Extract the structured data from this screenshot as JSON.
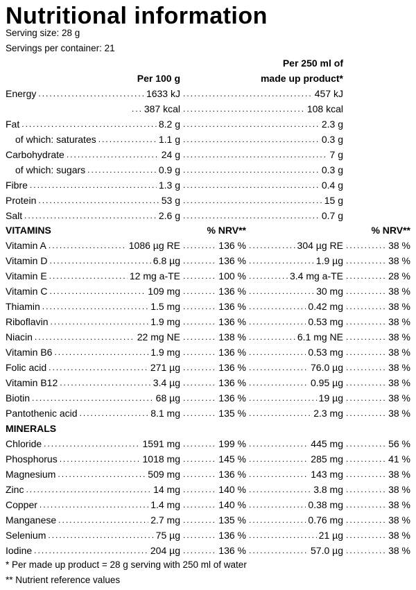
{
  "title": "Nutritional information",
  "serving_size": "Serving size: 28 g",
  "servings_per_container": "Servings per container: 21",
  "headers": {
    "per100": "Per 100 g",
    "per250_line1": "Per 250 ml of",
    "per250_line2": "made up product*",
    "nrv": "% NRV**"
  },
  "nutrition": [
    {
      "name": "Energy",
      "per100": "1633 kJ",
      "per250": "457 kJ"
    },
    {
      "name": "",
      "per100": "387 kcal",
      "per250": "108 kcal"
    },
    {
      "name": "Fat",
      "per100": "8.2 g",
      "per250": "2.3 g"
    },
    {
      "name": "of which: saturates",
      "per100": "1.1 g",
      "per250": "0.3 g",
      "indent": true
    },
    {
      "name": "Carbohydrate",
      "per100": "24 g",
      "per250": "7 g"
    },
    {
      "name": "of which: sugars",
      "per100": "0.9 g",
      "per250": "0.3 g",
      "indent": true
    },
    {
      "name": "Fibre",
      "per100": "1.3 g",
      "per250": "0.4 g"
    },
    {
      "name": "Protein",
      "per100": "53 g",
      "per250": "15 g"
    },
    {
      "name": "Salt",
      "per100": "2.6 g",
      "per250": "0.7 g"
    }
  ],
  "vitamins_heading": "VITAMINS",
  "vitamins": [
    {
      "name": "Vitamin A",
      "per100": "1086 µg RE",
      "nrv100": "136 %",
      "per250": "304 µg RE",
      "nrv250": "38 %"
    },
    {
      "name": "Vitamin D",
      "per100": "6.8 µg",
      "nrv100": "136 %",
      "per250": "1.9 µg",
      "nrv250": "38 %"
    },
    {
      "name": "Vitamin E",
      "per100": "12 mg a-TE",
      "nrv100": "100 %",
      "per250": "3.4 mg a-TE",
      "nrv250": "28 %"
    },
    {
      "name": "Vitamin C",
      "per100": "109 mg",
      "nrv100": "136 %",
      "per250": "30 mg",
      "nrv250": "38 %"
    },
    {
      "name": "Thiamin",
      "per100": "1.5 mg",
      "nrv100": "136 %",
      "per250": "0.42 mg",
      "nrv250": "38 %"
    },
    {
      "name": "Riboflavin",
      "per100": "1.9 mg",
      "nrv100": "136 %",
      "per250": "0.53 mg",
      "nrv250": "38 %"
    },
    {
      "name": "Niacin",
      "per100": "22 mg NE",
      "nrv100": "138 %",
      "per250": "6.1 mg NE",
      "nrv250": "38 %"
    },
    {
      "name": "Vitamin B6",
      "per100": "1.9 mg",
      "nrv100": "136 %",
      "per250": "0.53 mg",
      "nrv250": "38 %"
    },
    {
      "name": "Folic acid",
      "per100": "271 µg",
      "nrv100": "136 %",
      "per250": "76.0 µg",
      "nrv250": "38 %"
    },
    {
      "name": "Vitamin B12",
      "per100": "3.4 µg",
      "nrv100": "136 %",
      "per250": "0.95 µg",
      "nrv250": "38 %"
    },
    {
      "name": "Biotin",
      "per100": "68 µg",
      "nrv100": "136 %",
      "per250": "19 µg",
      "nrv250": "38 %"
    },
    {
      "name": "Pantothenic acid",
      "per100": "8.1 mg",
      "nrv100": "135 %",
      "per250": "2.3 mg",
      "nrv250": "38 %"
    }
  ],
  "minerals_heading": "MINERALS",
  "minerals": [
    {
      "name": "Chloride",
      "per100": "1591 mg",
      "nrv100": "199 %",
      "per250": "445 mg",
      "nrv250": "56 %"
    },
    {
      "name": "Phosphorus",
      "per100": "1018 mg",
      "nrv100": "145 %",
      "per250": "285 mg",
      "nrv250": "41 %"
    },
    {
      "name": "Magnesium",
      "per100": "509 mg",
      "nrv100": "136 %",
      "per250": "143 mg",
      "nrv250": "38 %"
    },
    {
      "name": "Zinc",
      "per100": "14 mg",
      "nrv100": "140 %",
      "per250": "3.8 mg",
      "nrv250": "38 %"
    },
    {
      "name": "Copper",
      "per100": "1.4 mg",
      "nrv100": "140 %",
      "per250": "0.38 mg",
      "nrv250": "38 %"
    },
    {
      "name": "Manganese",
      "per100": "2.7 mg",
      "nrv100": "135 %",
      "per250": "0.76 mg",
      "nrv250": "38 %"
    },
    {
      "name": "Selenium",
      "per100": "75 µg",
      "nrv100": "136 %",
      "per250": "21 µg",
      "nrv250": "38 %"
    },
    {
      "name": "Iodine",
      "per100": "204 µg",
      "nrv100": "136 %",
      "per250": "57.0 µg",
      "nrv250": "38 %"
    }
  ],
  "footnote1": "* Per made up product = 28 g serving with 250 ml of water",
  "footnote2": "** Nutrient reference values"
}
